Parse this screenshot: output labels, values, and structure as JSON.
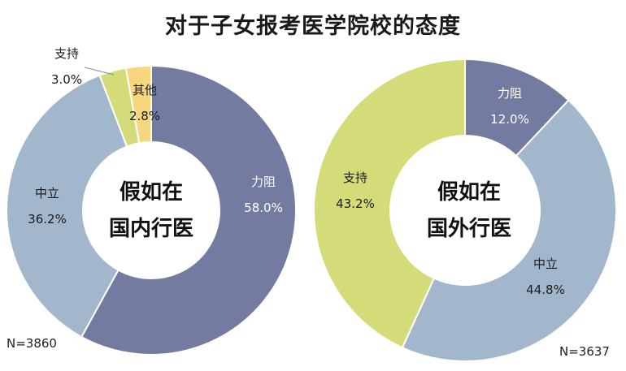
{
  "title": "对于子女报考医学院校的态度",
  "chart_data": [
    {
      "type": "pie",
      "center_label": [
        "假如在",
        "国内行医"
      ],
      "n_label": "N=3860",
      "slices": [
        {
          "name": "力阻",
          "value": 58.0,
          "value_label": "58.0%",
          "color": "#737ca0"
        },
        {
          "name": "中立",
          "value": 36.2,
          "value_label": "36.2%",
          "color": "#a3b7cc"
        },
        {
          "name": "支持",
          "value": 3.0,
          "value_label": "3.0%",
          "color": "#d4dc7a"
        },
        {
          "name": "其他",
          "value": 2.8,
          "value_label": "2.8%",
          "color": "#f7d67e"
        }
      ]
    },
    {
      "type": "pie",
      "center_label": [
        "假如在",
        "国外行医"
      ],
      "n_label": "N=3637",
      "slices": [
        {
          "name": "力阻",
          "value": 12.0,
          "value_label": "12.0%",
          "color": "#737ca0"
        },
        {
          "name": "中立",
          "value": 44.8,
          "value_label": "44.8%",
          "color": "#a3b7cc"
        },
        {
          "name": "支持",
          "value": 43.2,
          "value_label": "43.2%",
          "color": "#d4dc7a"
        }
      ]
    }
  ]
}
